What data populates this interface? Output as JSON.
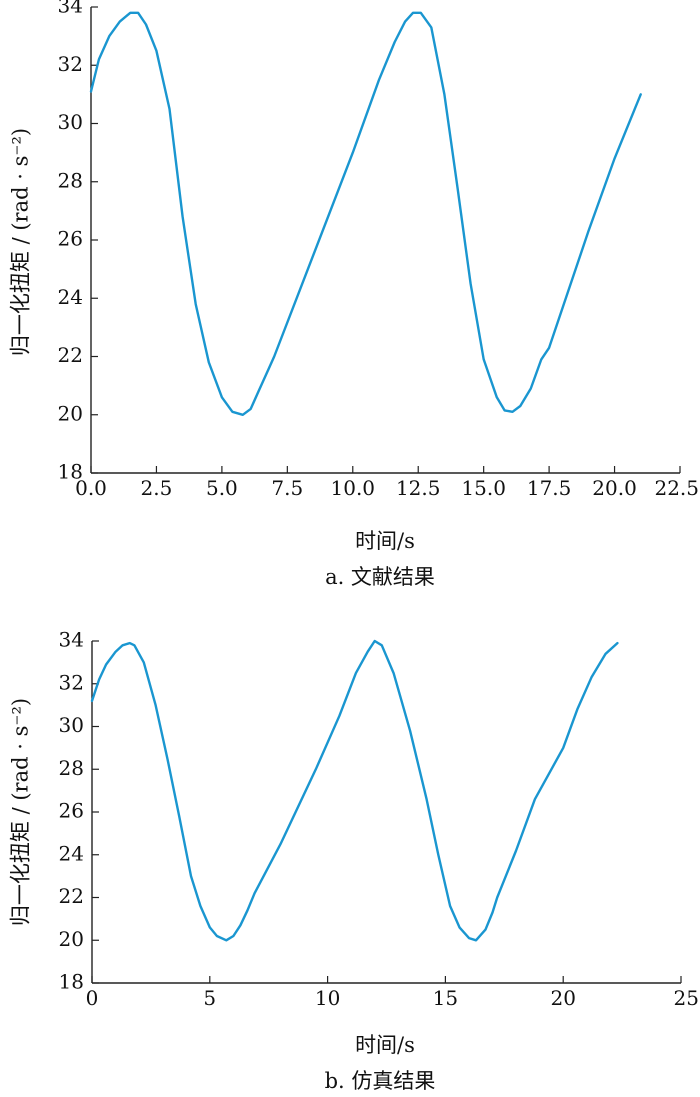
{
  "colors": {
    "series": "#1a96d0",
    "axis": "#222222",
    "text": "#111111"
  },
  "chart_data": [
    {
      "id": "a",
      "type": "line",
      "caption": "a. 文献结果",
      "xlabel": "时间/s",
      "ylabel": "归一化扭矩 / (rad · s⁻²)",
      "xlim": [
        0,
        22.5
      ],
      "ylim": [
        18,
        34
      ],
      "xticks": [
        0,
        2.5,
        5,
        7.5,
        10,
        12.5,
        15,
        17.5,
        20,
        22.5
      ],
      "xtick_labels": [
        "0.0",
        "2.5",
        "5.0",
        "7.5",
        "10.0",
        "12.5",
        "15.0",
        "17.5",
        "20.0",
        "22.5"
      ],
      "yticks": [
        18,
        20,
        22,
        24,
        26,
        28,
        30,
        32,
        34
      ],
      "ytick_labels": [
        "18",
        "20",
        "22",
        "24",
        "26",
        "28",
        "30",
        "32",
        "34"
      ],
      "grid": false,
      "series": [
        {
          "x": [
            0,
            0.3,
            0.7,
            1.1,
            1.5,
            1.8,
            2.1,
            2.5,
            3.0,
            3.5,
            4.0,
            4.5,
            5.0,
            5.4,
            5.8,
            6.1,
            6.4,
            6.8,
            7.0,
            8.5,
            10.0,
            11.0,
            11.6,
            12.0,
            12.3,
            12.6,
            13.0,
            13.5,
            14.0,
            14.5,
            15.0,
            15.5,
            15.8,
            16.1,
            16.4,
            16.8,
            17.2,
            17.5,
            19.0,
            20.0,
            21.0
          ],
          "y": [
            31.1,
            32.2,
            33.0,
            33.5,
            33.8,
            33.8,
            33.4,
            32.5,
            30.5,
            26.8,
            23.8,
            21.8,
            20.6,
            20.1,
            20.0,
            20.2,
            20.8,
            21.6,
            22.0,
            25.5,
            29.0,
            31.5,
            32.8,
            33.5,
            33.8,
            33.8,
            33.3,
            31.0,
            27.8,
            24.5,
            21.9,
            20.6,
            20.15,
            20.1,
            20.3,
            20.9,
            21.9,
            22.3,
            26.3,
            28.8,
            31.0
          ]
        }
      ]
    },
    {
      "id": "b",
      "type": "line",
      "caption": "b. 仿真结果",
      "xlabel": "时间/s",
      "ylabel": "归一化扭矩 / (rad · s⁻²)",
      "xlim": [
        0,
        25
      ],
      "ylim": [
        18,
        34
      ],
      "xticks": [
        0,
        5,
        10,
        15,
        20,
        25
      ],
      "xtick_labels": [
        "0",
        "5",
        "10",
        "15",
        "20",
        "25"
      ],
      "yticks": [
        18,
        20,
        22,
        24,
        26,
        28,
        30,
        32,
        34
      ],
      "ytick_labels": [
        "18",
        "20",
        "22",
        "24",
        "26",
        "28",
        "30",
        "32",
        "34"
      ],
      "grid": false,
      "series": [
        {
          "x": [
            0,
            0.3,
            0.6,
            1.0,
            1.3,
            1.6,
            1.8,
            2.2,
            2.7,
            3.2,
            3.7,
            4.2,
            4.6,
            5.0,
            5.3,
            5.7,
            6.0,
            6.3,
            6.6,
            6.9,
            8.0,
            9.5,
            10.5,
            11.2,
            11.7,
            12.0,
            12.3,
            12.8,
            13.5,
            14.2,
            14.7,
            15.2,
            15.6,
            16.0,
            16.3,
            16.7,
            17.0,
            17.2,
            18.0,
            18.8,
            19.5,
            20.0,
            20.6,
            21.2,
            21.8,
            22.3
          ],
          "y": [
            31.2,
            32.2,
            32.9,
            33.5,
            33.8,
            33.9,
            33.8,
            33.0,
            31.0,
            28.5,
            25.8,
            23.0,
            21.6,
            20.6,
            20.2,
            20.0,
            20.2,
            20.7,
            21.4,
            22.2,
            24.5,
            28.0,
            30.5,
            32.5,
            33.5,
            34.0,
            33.8,
            32.5,
            29.8,
            26.6,
            24.0,
            21.6,
            20.6,
            20.1,
            20.0,
            20.5,
            21.3,
            22.0,
            24.2,
            26.6,
            28.0,
            29.0,
            30.8,
            32.3,
            33.4,
            33.9
          ]
        }
      ]
    }
  ]
}
